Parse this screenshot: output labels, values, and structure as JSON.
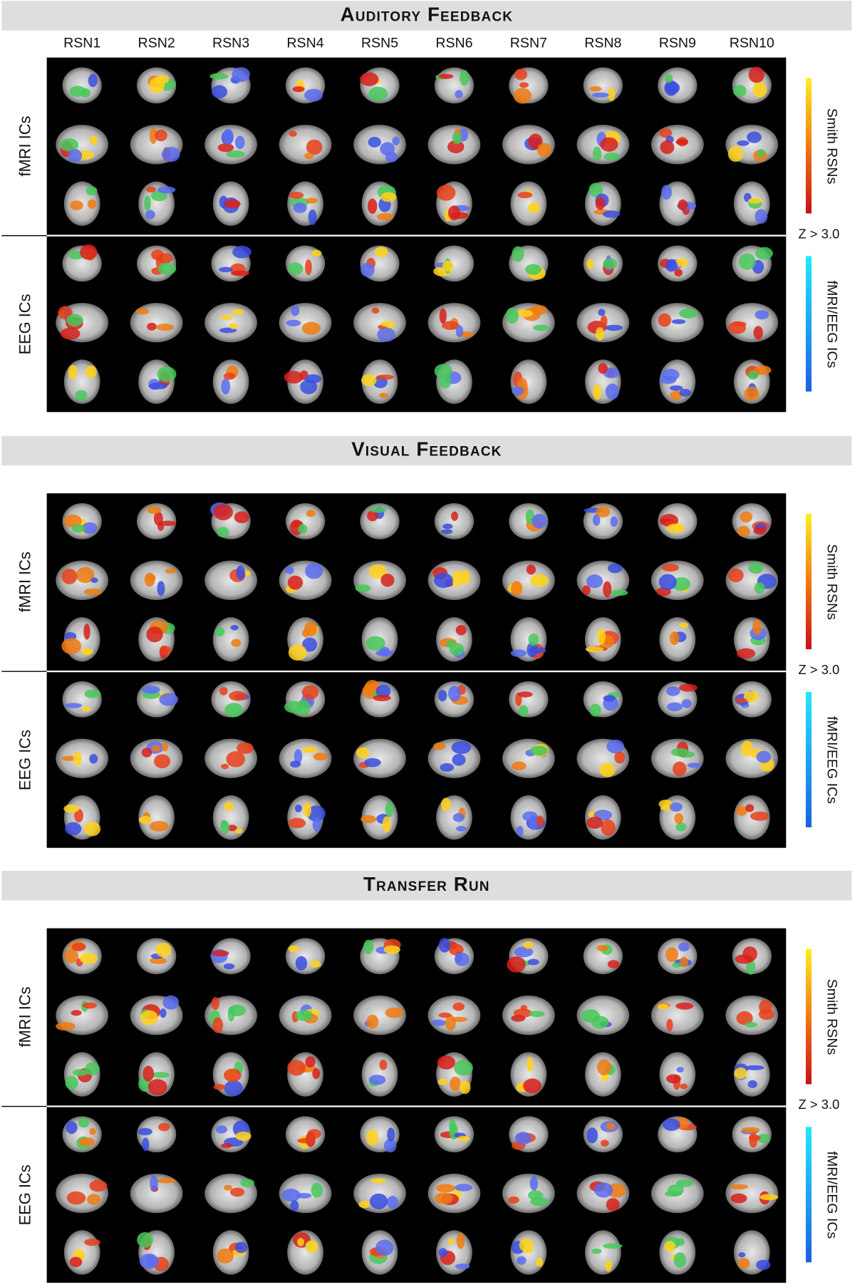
{
  "columns": [
    "RSN1",
    "RSN2",
    "RSN3",
    "RSN4",
    "RSN5",
    "RSN6",
    "RSN7",
    "RSN8",
    "RSN9",
    "RSN10"
  ],
  "sections": [
    {
      "title": "Auditory Feedback",
      "rows": [
        "fMRI ICs",
        "EEG ICs"
      ],
      "colorbars": [
        "Smith RSNs",
        "fMRI/EEG ICs"
      ],
      "threshold": "Z > 3.0"
    },
    {
      "title": "Visual Feedback",
      "rows": [
        "fMRI ICs",
        "EEG ICs"
      ],
      "colorbars": [
        "Smith RSNs",
        "fMRI/EEG ICs"
      ],
      "threshold": "Z > 3.0"
    },
    {
      "title": "Transfer Run",
      "rows": [
        "fMRI ICs",
        "EEG ICs"
      ],
      "colorbars": [
        "Smith RSNs",
        "fMRI/EEG ICs"
      ],
      "threshold": "Z > 3.0"
    }
  ]
}
